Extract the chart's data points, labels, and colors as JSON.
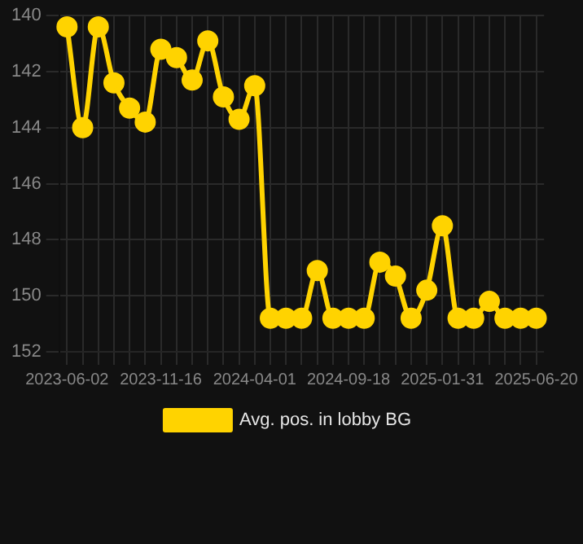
{
  "chart_data": {
    "type": "line",
    "categories": [
      "2023-06-02",
      null,
      null,
      null,
      null,
      null,
      "2023-11-16",
      null,
      null,
      null,
      null,
      null,
      "2024-04-01",
      null,
      null,
      null,
      null,
      null,
      "2024-09-18",
      null,
      null,
      null,
      null,
      null,
      "2025-01-31",
      null,
      null,
      null,
      null,
      null,
      "2025-06-20"
    ],
    "series": [
      {
        "name": "Avg. pos. in lobby BG",
        "color": "#ffd300",
        "values": [
          140.4,
          144.0,
          140.4,
          142.4,
          143.3,
          143.8,
          141.2,
          141.5,
          142.3,
          140.9,
          142.9,
          143.7,
          142.5,
          150.8,
          150.8,
          150.8,
          149.1,
          150.8,
          150.8,
          150.8,
          148.8,
          149.3,
          150.8,
          149.8,
          147.5,
          150.8,
          150.8,
          150.2,
          150.8,
          150.8,
          150.8
        ]
      }
    ],
    "ylim": [
      152,
      140
    ],
    "yticks": [
      140,
      142,
      144,
      146,
      148,
      150,
      152
    ],
    "grid": true,
    "legend": "bottom",
    "marker": "circle",
    "line_style": "solid"
  }
}
